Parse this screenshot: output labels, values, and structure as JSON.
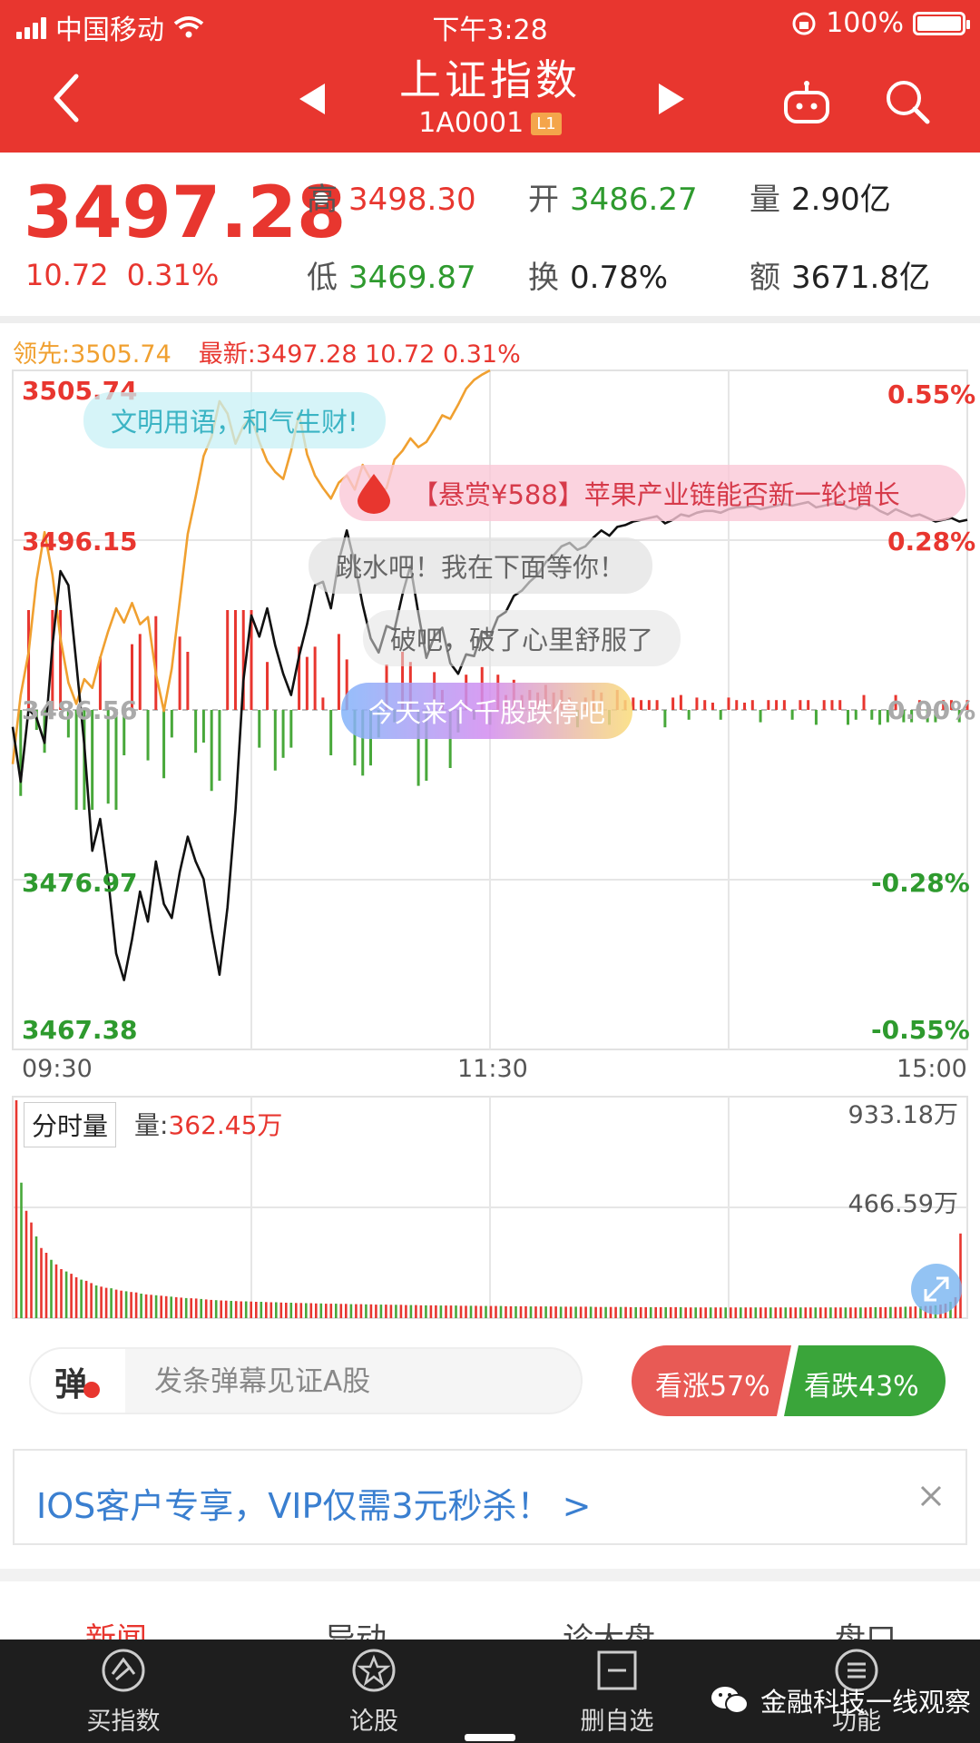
{
  "status_bar": {
    "carrier": "中国移动",
    "time": "下午3:28",
    "battery": "100%"
  },
  "nav": {
    "title": "上证指数",
    "code": "1A0001",
    "level_badge": "L1"
  },
  "quote": {
    "price": "3497.28",
    "change": "10.72",
    "change_pct": "0.31%",
    "stats": [
      {
        "key": "高",
        "value": "3498.30",
        "tone": "red"
      },
      {
        "key": "开",
        "value": "3486.27",
        "tone": "green"
      },
      {
        "key": "量",
        "value": "2.90亿",
        "tone": "dark"
      },
      {
        "key": "低",
        "value": "3469.87",
        "tone": "green"
      },
      {
        "key": "换",
        "value": "0.78%",
        "tone": "dark"
      },
      {
        "key": "额",
        "value": "3671.8亿",
        "tone": "dark"
      }
    ]
  },
  "chart_header": {
    "lead": "领先:3505.74",
    "latest": "最新:3497.28  10.72  0.31%"
  },
  "danmaku": [
    "文明用语，和气生财!",
    "【悬赏¥588】苹果产业链能否新一轮增长",
    "跳水吧！我在下面等你！",
    "破吧，破了心里舒服了",
    "今天来个千股跌停吧"
  ],
  "chart_data": [
    {
      "type": "line",
      "x_ticks": [
        "09:30",
        "11:30",
        "15:00"
      ],
      "y_ticks_left": [
        "3505.74",
        "3496.15",
        "3486.56",
        "3476.97",
        "3467.38"
      ],
      "y_ticks_right": [
        "0.55%",
        "0.28%",
        "0.00%",
        "-0.28%",
        "-0.55%"
      ],
      "ylim": [
        3467.38,
        3505.74
      ],
      "baseline": 3486.56,
      "series": [
        {
          "color": "#111111",
          "x": [
            0,
            2,
            4,
            6,
            8,
            10,
            12,
            14,
            16,
            18,
            20,
            22,
            24,
            26,
            28,
            30,
            32,
            34,
            36,
            38,
            40,
            42,
            44,
            46,
            48,
            50,
            52,
            54,
            56,
            58,
            60,
            62,
            64,
            66,
            68,
            70,
            72,
            74,
            76,
            78,
            80,
            82,
            84,
            86,
            88,
            90,
            92,
            94,
            96,
            98,
            100,
            102,
            104,
            106,
            108,
            110,
            112,
            114,
            116,
            118,
            120,
            122,
            124,
            126,
            128,
            130,
            132,
            134,
            136,
            138,
            140,
            142,
            144,
            146,
            148,
            150,
            152,
            154,
            156,
            158,
            160,
            162,
            164,
            166,
            168,
            170,
            172,
            174,
            176,
            178,
            180,
            182,
            184,
            186,
            188,
            190,
            192,
            194,
            196,
            198,
            200,
            202,
            204,
            206,
            208,
            210,
            212,
            214,
            216,
            218,
            220,
            222,
            224,
            226,
            228,
            230,
            232,
            234,
            236,
            238,
            240
          ],
          "values": [
            3485.6,
            3482.5,
            3486.6,
            3486.1,
            3484.7,
            3490.2,
            3494.4,
            3493.6,
            3489.2,
            3484.6,
            3478.6,
            3480.4,
            3477.0,
            3472.8,
            3471.3,
            3473.6,
            3476.3,
            3474.6,
            3478.0,
            3475.6,
            3474.8,
            3477.4,
            3479.4,
            3478.0,
            3477.0,
            3474.1,
            3471.6,
            3475.4,
            3480.9,
            3488.2,
            3491.9,
            3490.7,
            3492.3,
            3490.2,
            3488.6,
            3487.4,
            3489.6,
            3491.4,
            3493.6,
            3493.8,
            3492.3,
            3495.0,
            3496.7,
            3494.8,
            3492.5,
            3490.6,
            3489.8,
            3491.3,
            3491.1,
            3493.1,
            3494.7,
            3492.0,
            3489.5,
            3490.7,
            3491.2,
            3489.2,
            3488.6,
            3489.7,
            3489.6,
            3491.0,
            3490.7,
            3491.8,
            3492.1,
            3493.0,
            3493.3,
            3493.8,
            3494.2,
            3494.9,
            3495.3,
            3495.8,
            3496.0,
            3495.6,
            3495.8,
            3496.3,
            3496.7,
            3496.4,
            3496.9,
            3497.0,
            3497.2,
            3497.3,
            3497.4,
            3497.5,
            3497.1,
            3497.3,
            3497.6,
            3497.5,
            3497.7,
            3497.8,
            3497.8,
            3497.7,
            3497.9,
            3498.0,
            3498.0,
            3498.1,
            3497.9,
            3498.0,
            3498.1,
            3498.2,
            3498.1,
            3498.2,
            3498.3,
            3498.0,
            3498.1,
            3498.2,
            3498.3,
            3498.0,
            3497.9,
            3498.2,
            3498.1,
            3497.8,
            3497.6,
            3497.9,
            3497.7,
            3497.5,
            3497.6,
            3497.4,
            3497.2,
            3497.3,
            3497.4,
            3497.2,
            3497.3
          ]
        },
        {
          "color": "#f0a030",
          "x": [
            0,
            2,
            4,
            6,
            8,
            10,
            12,
            14,
            16,
            18,
            20,
            22,
            24,
            26,
            28,
            30,
            32,
            34,
            36,
            38,
            40,
            42,
            44,
            46,
            48,
            50,
            52,
            54,
            56,
            58,
            60,
            62,
            64,
            66,
            68,
            70,
            72,
            74,
            76,
            78,
            80,
            82,
            84,
            86,
            88,
            90,
            92,
            94,
            96,
            98,
            100,
            102,
            104,
            106,
            108,
            110,
            112,
            114,
            116,
            118,
            120
          ],
          "values": [
            3483.5,
            3487.4,
            3489.8,
            3493.9,
            3496.6,
            3494.2,
            3490.6,
            3488.1,
            3486.9,
            3488.3,
            3487.8,
            3489.5,
            3491.0,
            3492.3,
            3491.5,
            3492.6,
            3491.4,
            3491.8,
            3488.6,
            3486.5,
            3488.9,
            3492.7,
            3496.5,
            3498.6,
            3500.9,
            3502.0,
            3504.0,
            3503.3,
            3501.6,
            3502.6,
            3503.1,
            3501.7,
            3500.6,
            3500.0,
            3499.6,
            3501.2,
            3503.3,
            3501.0,
            3499.8,
            3499.1,
            3498.5,
            3499.4,
            3499.8,
            3499.0,
            3500.4,
            3499.6,
            3498.7,
            3499.1,
            3500.7,
            3501.2,
            3501.9,
            3501.4,
            3501.7,
            3502.4,
            3503.2,
            3503.0,
            3503.8,
            3504.7,
            3505.2,
            3505.5,
            3505.74
          ]
        }
      ]
    },
    {
      "type": "bar",
      "ylabel_ticks": [
        "933.18万",
        "466.59万"
      ],
      "label": "分时量",
      "current_volume": "362.45万",
      "values_wan": [
        933.18,
        580,
        460,
        410,
        350,
        300,
        280,
        250,
        230,
        210,
        200,
        190,
        175,
        165,
        160,
        150,
        140,
        135,
        130,
        128,
        122,
        118,
        115,
        112,
        110,
        105,
        102,
        100,
        98,
        96,
        94,
        92,
        90,
        88,
        86,
        85,
        84,
        82,
        80,
        78,
        77,
        76,
        75,
        74,
        73,
        72,
        72,
        71,
        70,
        70,
        69,
        68,
        68,
        67,
        66,
        66,
        65,
        65,
        64,
        64,
        63,
        63,
        62,
        62,
        62,
        61,
        61,
        60,
        60,
        60,
        59,
        59,
        58,
        58,
        58,
        57,
        57,
        57,
        56,
        56,
        56,
        55,
        55,
        55,
        55,
        54,
        54,
        54,
        54,
        53,
        53,
        53,
        53,
        52,
        52,
        52,
        52,
        52,
        51,
        51,
        51,
        51,
        51,
        50,
        50,
        50,
        50,
        50,
        50,
        49,
        49,
        49,
        49,
        49,
        49,
        49,
        48,
        48,
        48,
        48,
        48,
        48,
        48,
        47,
        47,
        47,
        47,
        47,
        47,
        47,
        47,
        47,
        47,
        47,
        46,
        46,
        46,
        46,
        46,
        46,
        46,
        46,
        46,
        46,
        46,
        46,
        46,
        46,
        46,
        46,
        46,
        46,
        46,
        46,
        46,
        46,
        46,
        46,
        46,
        46,
        46,
        46,
        46,
        46,
        46,
        46,
        46,
        46,
        46,
        46,
        46,
        47,
        47,
        47,
        47,
        48,
        48,
        48,
        49,
        49,
        50,
        51,
        52,
        53,
        55,
        58,
        62,
        70,
        90,
        362.45
      ]
    }
  ],
  "danmaku_input": {
    "glyph": "弹",
    "placeholder": "发条弹幕见证A股"
  },
  "vote": {
    "up": "看涨57%",
    "down": "看跌43%",
    "up_color": "#e85a55",
    "down_color": "#3aa53a"
  },
  "promo": {
    "text": "IOS客户专享，VIP仅需3元秒杀！ >"
  },
  "news_tabs": [
    "新闻",
    "异动",
    "诊大盘",
    "盘口"
  ],
  "tabbar": [
    {
      "label": "买指数",
      "icon": "trade-icon"
    },
    {
      "label": "论股",
      "icon": "forum-star-icon"
    },
    {
      "label": "删自选",
      "icon": "remove-watchlist-icon"
    },
    {
      "label": "功能",
      "icon": "menu-icon"
    }
  ],
  "watermark": {
    "text": "金融科技一线观察"
  }
}
